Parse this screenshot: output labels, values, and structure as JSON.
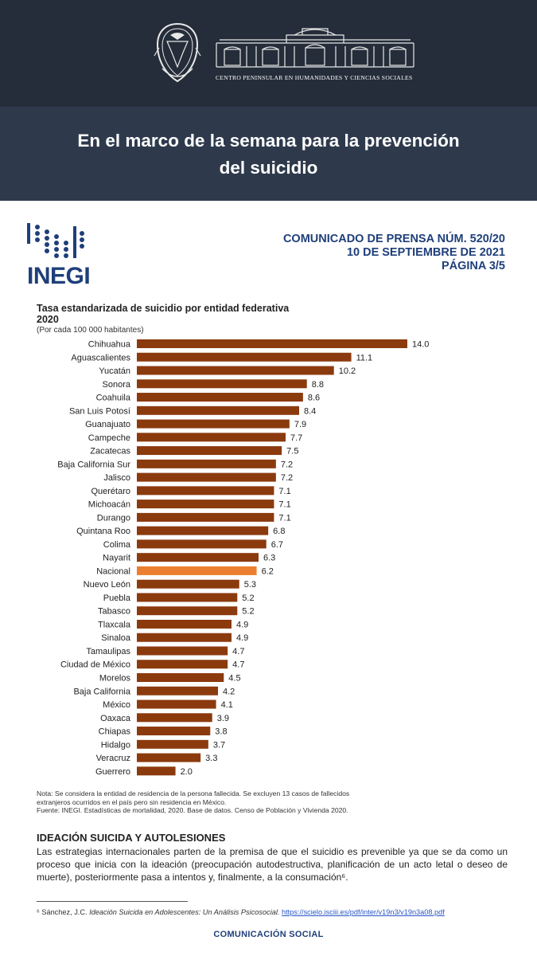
{
  "header": {
    "center_name": "CENTRO PENINSULAR EN HUMANIDADES Y CIENCIAS SOCIALES",
    "banner_line1": "En el marco de la semana para la prevención",
    "banner_line2": "del suicidio"
  },
  "doc": {
    "logo_text": "INEGI",
    "press_line1": "COMUNICADO DE PRENSA NÚM. 520/20",
    "press_line2": "10 DE SEPTIEMBRE DE 2021",
    "press_line3": "PÁGINA 3/5",
    "note_line1": "Nota: Se considera la entidad de residencia de la persona fallecida. Se excluyen 13 casos de fallecidos",
    "note_line2": "extranjeros ocurridos en el país pero sin residencia en México.",
    "note_line3": "Fuente: INEGI. Estadísticas de mortalidad, 2020. Base de datos. Censo de Población y Vivienda 2020.",
    "section_title": "IDEACIÓN SUICIDA Y AUTOLESIONES",
    "section_body": "Las estrategias internacionales parten de la premisa de que el suicidio es prevenible ya que se da como un proceso que inicia con la ideación (preocupación autodestructiva, planificación de un acto letal o deseo de muerte), posteriormente pasa a intentos y, finalmente, a la consumación⁶.",
    "footnote_prefix": "⁶ Sánchez, J.C. ",
    "footnote_title": "Ideación Suicida en Adolescentes: Un Análisis Psicosocial.",
    "footnote_link": "https://scielo.isciii.es/pdf/inter/v19n3/v19n3a08.pdf",
    "footer": "COMUNICACIÓN SOCIAL"
  },
  "chart_data": {
    "type": "bar",
    "orientation": "horizontal",
    "title": "Tasa estandarizada de suicidio por entidad federativa",
    "title_year": "2020",
    "subtitle": "(Por cada 100 000 habitantes)",
    "categories": [
      "Chihuahua",
      "Aguascalientes",
      "Yucatán",
      "Sonora",
      "Coahuila",
      "San Luis Potosí",
      "Guanajuato",
      "Campeche",
      "Zacatecas",
      "Baja California Sur",
      "Jalisco",
      "Querétaro",
      "Michoacán",
      "Durango",
      "Quintana Roo",
      "Colima",
      "Nayarit",
      "Nacional",
      "Nuevo León",
      "Puebla",
      "Tabasco",
      "Tlaxcala",
      "Sinaloa",
      "Tamaulipas",
      "Ciudad de México",
      "Morelos",
      "Baja California",
      "México",
      "Oaxaca",
      "Chiapas",
      "Hidalgo",
      "Veracruz",
      "Guerrero"
    ],
    "values": [
      14.0,
      11.1,
      10.2,
      8.8,
      8.6,
      8.4,
      7.9,
      7.7,
      7.5,
      7.2,
      7.2,
      7.1,
      7.1,
      7.1,
      6.8,
      6.7,
      6.3,
      6.2,
      5.3,
      5.2,
      5.2,
      4.9,
      4.9,
      4.7,
      4.7,
      4.5,
      4.2,
      4.1,
      3.9,
      3.8,
      3.7,
      3.3,
      2.0
    ],
    "value_labels": [
      "14.0",
      "11.1",
      "10.2",
      "8.8",
      "8.6",
      "8.4",
      "7.9",
      "7.7",
      "7.5",
      "7.2",
      "7.2",
      "7.1",
      "7.1",
      "7.1",
      "6.8",
      "6.7",
      "6.3",
      "6.2",
      "5.3",
      "5.2",
      "5.2",
      "4.9",
      "4.9",
      "4.7",
      "4.7",
      "4.5",
      "4.2",
      "4.1",
      "3.9",
      "3.8",
      "3.7",
      "3.3",
      "2.0"
    ],
    "highlight": "Nacional",
    "colors": {
      "bar": "#8b3a0e",
      "highlight": "#ec7f2f",
      "label_box": "#ffffff"
    },
    "xlim": [
      0,
      14
    ]
  }
}
